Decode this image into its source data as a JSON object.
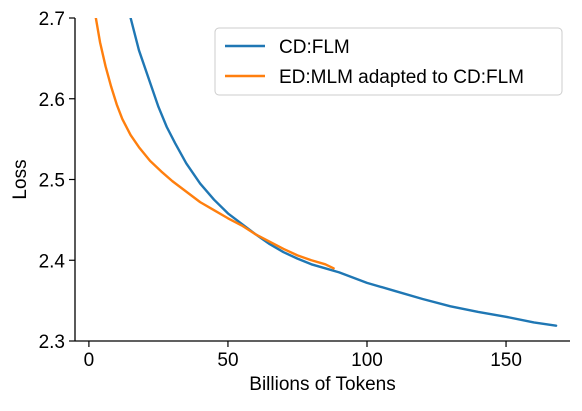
{
  "chart_data": {
    "type": "line",
    "title": "",
    "xlabel": "Billions of Tokens",
    "ylabel": "Loss",
    "xlim": [
      -5,
      173
    ],
    "ylim": [
      2.3,
      2.7
    ],
    "x_ticks": [
      0,
      50,
      100,
      150
    ],
    "x_tick_labels": [
      "0",
      "50",
      "100",
      "150"
    ],
    "y_ticks": [
      2.3,
      2.4,
      2.5,
      2.6,
      2.7
    ],
    "y_tick_labels": [
      "2.3",
      "2.4",
      "2.5",
      "2.6",
      "2.7"
    ],
    "grid": false,
    "legend_position": "top-right",
    "series": [
      {
        "name": "CD:FLM",
        "color": "#1f77b4",
        "points": [
          [
            15,
            2.7
          ],
          [
            18,
            2.66
          ],
          [
            22,
            2.62
          ],
          [
            25,
            2.59
          ],
          [
            28,
            2.565
          ],
          [
            31,
            2.545
          ],
          [
            35,
            2.52
          ],
          [
            40,
            2.495
          ],
          [
            45,
            2.475
          ],
          [
            50,
            2.458
          ],
          [
            55,
            2.445
          ],
          [
            60,
            2.432
          ],
          [
            65,
            2.42
          ],
          [
            70,
            2.41
          ],
          [
            75,
            2.402
          ],
          [
            80,
            2.395
          ],
          [
            85,
            2.39
          ],
          [
            90,
            2.385
          ],
          [
            100,
            2.372
          ],
          [
            110,
            2.362
          ],
          [
            120,
            2.352
          ],
          [
            130,
            2.343
          ],
          [
            140,
            2.336
          ],
          [
            150,
            2.33
          ],
          [
            160,
            2.323
          ],
          [
            168,
            2.319
          ]
        ]
      },
      {
        "name": "ED:MLM adapted to CD:FLM",
        "color": "#ff7f0e",
        "points": [
          [
            2.5,
            2.7
          ],
          [
            4,
            2.67
          ],
          [
            6,
            2.64
          ],
          [
            8,
            2.615
          ],
          [
            10,
            2.593
          ],
          [
            12,
            2.575
          ],
          [
            15,
            2.555
          ],
          [
            18,
            2.54
          ],
          [
            22,
            2.523
          ],
          [
            26,
            2.51
          ],
          [
            30,
            2.498
          ],
          [
            35,
            2.485
          ],
          [
            40,
            2.472
          ],
          [
            45,
            2.462
          ],
          [
            50,
            2.452
          ],
          [
            55,
            2.443
          ],
          [
            60,
            2.432
          ],
          [
            65,
            2.423
          ],
          [
            70,
            2.414
          ],
          [
            75,
            2.406
          ],
          [
            80,
            2.4
          ],
          [
            85,
            2.395
          ],
          [
            88,
            2.39
          ]
        ]
      }
    ]
  }
}
